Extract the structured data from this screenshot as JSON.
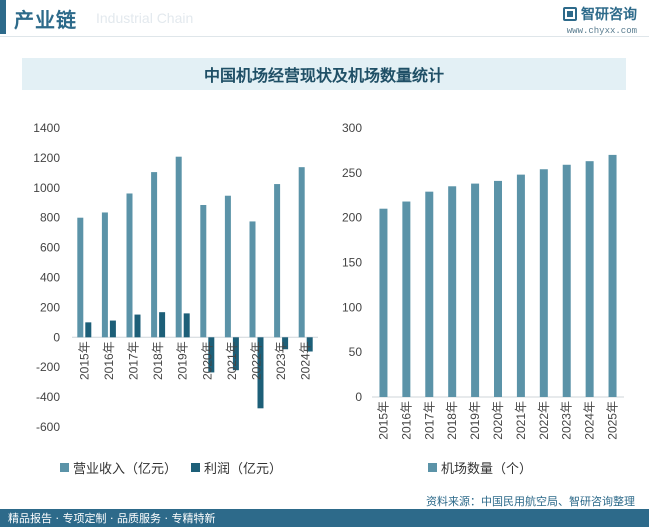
{
  "header": {
    "section_title": "产业链",
    "section_subtitle": "Industrial Chain",
    "brand_name": "智研咨询",
    "brand_url": "www.chyxx.com"
  },
  "title": "中国机场经营现状及机场数量统计",
  "source": "资料来源：中国民用航空局、智研咨询整理",
  "footer": "精品报告 · 专项定制 · 品质服务 · 专精特新",
  "colors": {
    "revenue": "#5b93a8",
    "profit": "#1d5f78",
    "airports": "#5b93a8",
    "accent": "#2d6a8a"
  },
  "chart_data": [
    {
      "type": "bar",
      "categories": [
        "2015年",
        "2016年",
        "2017年",
        "2018年",
        "2019年",
        "2020年",
        "2021年",
        "2022年",
        "2023年",
        "2024年"
      ],
      "series": [
        {
          "name": "营业收入（亿元）",
          "values": [
            800,
            835,
            962,
            1105,
            1208,
            885,
            947,
            775,
            1025,
            1138
          ]
        },
        {
          "name": "利润（亿元）",
          "values": [
            100,
            112,
            152,
            168,
            160,
            -235,
            -220,
            -475,
            -80,
            -95
          ]
        }
      ],
      "ylim": [
        -600,
        1400
      ],
      "yticks": [
        -600,
        -400,
        -200,
        0,
        200,
        400,
        600,
        800,
        1000,
        1200,
        1400
      ],
      "legend": "bottom"
    },
    {
      "type": "bar",
      "categories": [
        "2015年",
        "2016年",
        "2017年",
        "2018年",
        "2019年",
        "2020年",
        "2021年",
        "2022年",
        "2023年",
        "2024年",
        "2025年"
      ],
      "series": [
        {
          "name": "机场数量（个）",
          "values": [
            210,
            218,
            229,
            235,
            238,
            241,
            248,
            254,
            259,
            263,
            270
          ]
        }
      ],
      "ylim": [
        0,
        300
      ],
      "yticks": [
        0,
        50,
        100,
        150,
        200,
        250,
        300
      ],
      "legend": "bottom"
    }
  ]
}
